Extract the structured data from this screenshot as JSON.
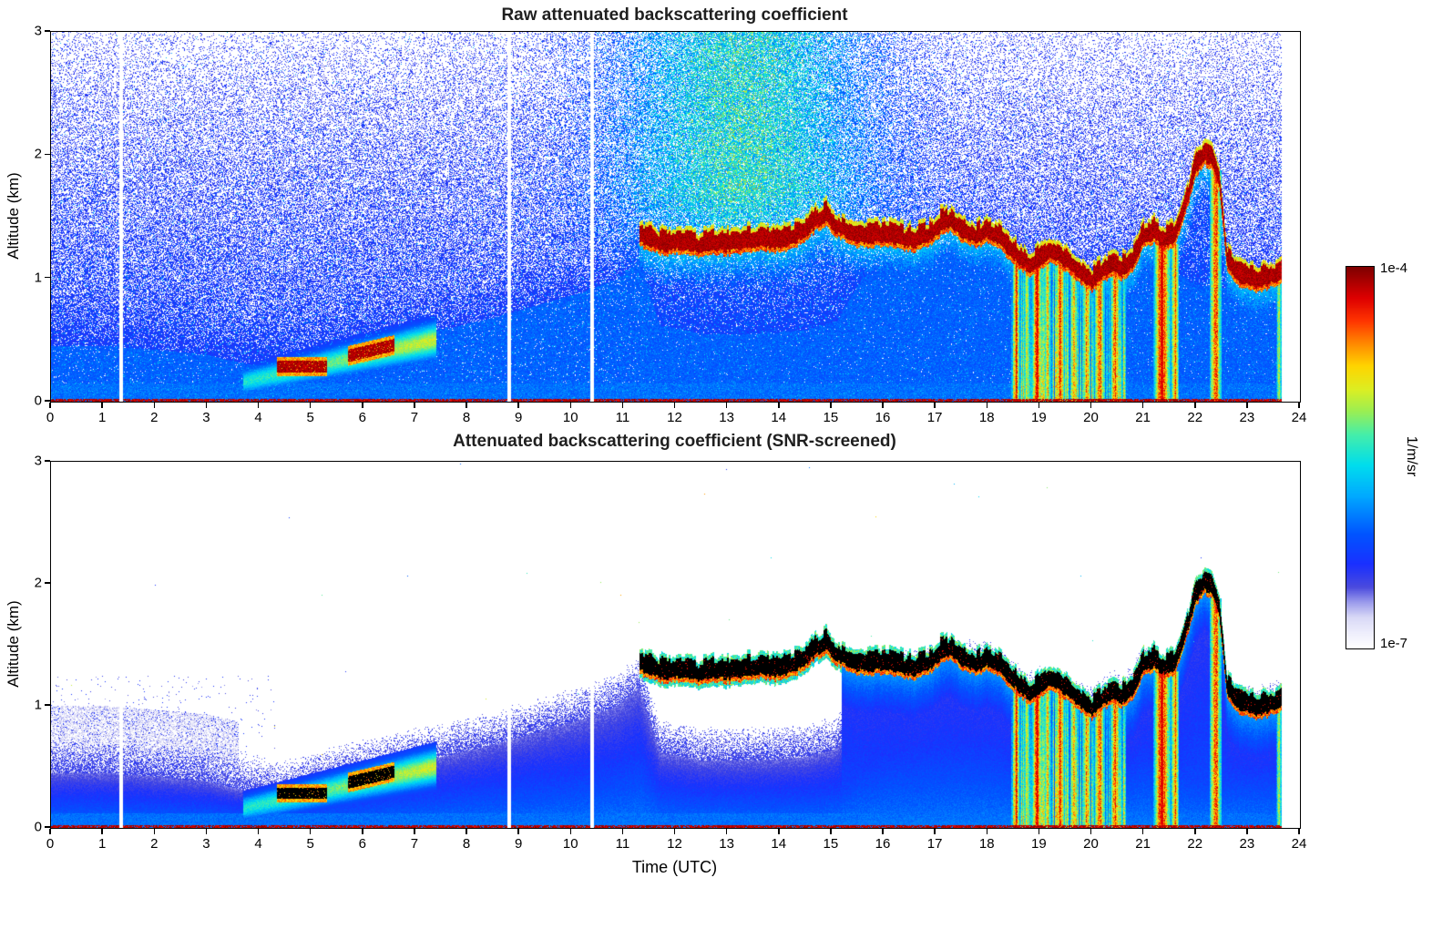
{
  "figure": {
    "background": "#ffffff"
  },
  "chart_data": [
    {
      "type": "heatmap",
      "title": "Raw attenuated backscattering coefficient",
      "ylabel": "Altitude (km)",
      "xlim": [
        0,
        24
      ],
      "ylim": [
        0,
        3
      ],
      "xticks": [
        0,
        1,
        2,
        3,
        4,
        5,
        6,
        7,
        8,
        9,
        10,
        11,
        12,
        13,
        14,
        15,
        16,
        17,
        18,
        19,
        20,
        21,
        22,
        23,
        24
      ],
      "yticks": [
        0,
        1,
        2,
        3
      ],
      "grid": false,
      "colorbar": {
        "max": "1e-4",
        "min": "1e-7",
        "units": "1/m/sr",
        "scale": "log"
      },
      "features": {
        "colormap_stops": [
          [
            0,
            "#ffffff"
          ],
          [
            0.04,
            "#eeeefc"
          ],
          [
            0.08,
            "#d9d9f6"
          ],
          [
            0.12,
            "#9b9bec"
          ],
          [
            0.16,
            "#4a4ade"
          ],
          [
            0.22,
            "#1a30ff"
          ],
          [
            0.3,
            "#0055ff"
          ],
          [
            0.4,
            "#00aaff"
          ],
          [
            0.48,
            "#00ddee"
          ],
          [
            0.56,
            "#44eeaa"
          ],
          [
            0.62,
            "#99ee55"
          ],
          [
            0.68,
            "#ddee22"
          ],
          [
            0.74,
            "#ffd500"
          ],
          [
            0.8,
            "#ff8800"
          ],
          [
            0.86,
            "#ff3300"
          ],
          [
            0.92,
            "#dd0000"
          ],
          [
            1,
            "#7f0000"
          ]
        ],
        "data_gaps_utc": [
          1.35,
          8.8,
          10.4
        ],
        "data_end_utc": 23.65,
        "day_noise": {
          "t_center": 13.3,
          "t_sigma": 2.4,
          "alt_min_km": 0.8
        },
        "bl_top_series": {
          "t": [
            0,
            1,
            2,
            3,
            3.8,
            4.5,
            5.5,
            6.5,
            7.5,
            8.5,
            9.5,
            10.3,
            10.9,
            11.3,
            11.7,
            12.5,
            13.5,
            14.5,
            15.1,
            15.6,
            16.2,
            17,
            18,
            18.5,
            19,
            20,
            21,
            22,
            23,
            24
          ],
          "alt_km": [
            0.45,
            0.45,
            0.42,
            0.38,
            0.3,
            0.28,
            0.4,
            0.5,
            0.58,
            0.68,
            0.8,
            0.9,
            1,
            1.15,
            0.62,
            0.55,
            0.55,
            0.58,
            0.65,
            1,
            1.15,
            1.25,
            1.28,
            1.1,
            1.05,
            0.9,
            1.2,
            0.95,
            0.9,
            0.95
          ]
        },
        "cloud_base_series": {
          "t": [
            11.3,
            11.5,
            11.8,
            12.1,
            12.4,
            12.7,
            13,
            13.3,
            13.6,
            13.9,
            14.2,
            14.5,
            14.7,
            14.9,
            15.1,
            15.4,
            15.7,
            16,
            16.3,
            16.6,
            16.9,
            17.1,
            17.3,
            17.5,
            17.8,
            18,
            18.2,
            18.4,
            18.6,
            18.8,
            19,
            19.2,
            19.4,
            19.6,
            19.8,
            20,
            20.2,
            20.4,
            20.6,
            20.8,
            21,
            21.2,
            21.4,
            21.6,
            21.8,
            22,
            22.15,
            22.3,
            22.45,
            22.6,
            22.8,
            23,
            23.2,
            23.4,
            23.65
          ],
          "alt_km": [
            1.3,
            1.26,
            1.22,
            1.24,
            1.21,
            1.23,
            1.22,
            1.24,
            1.26,
            1.24,
            1.27,
            1.33,
            1.42,
            1.45,
            1.37,
            1.3,
            1.28,
            1.3,
            1.27,
            1.25,
            1.3,
            1.38,
            1.42,
            1.33,
            1.28,
            1.33,
            1.28,
            1.2,
            1.12,
            1.05,
            1.1,
            1.18,
            1.12,
            1.05,
            0.98,
            0.92,
            1,
            1.05,
            1.02,
            1.1,
            1.28,
            1.32,
            1.25,
            1.3,
            1.55,
            1.85,
            1.95,
            1.92,
            1.75,
            1.1,
            0.98,
            0.95,
            0.92,
            0.95,
            1
          ]
        },
        "aerosol_plume": {
          "t_start": 3.7,
          "t_end": 7.4,
          "alt_start": 0.16,
          "alt_end": 0.5
        },
        "fog_patches": [
          {
            "t_start": 4.35,
            "t_end": 5.3,
            "alt_bottom": 0.24,
            "alt_top": 0.33,
            "rise": 0
          },
          {
            "t_start": 5.7,
            "t_end": 6.6,
            "alt_bottom": 0.32,
            "alt_top": 0.42,
            "rise": 0.09
          }
        ],
        "precip_band": {
          "t_start": 18.45,
          "t_end": 20.65
        },
        "precip_events": [
          {
            "t": 18.55,
            "w": 0.07,
            "ztop": 1.12,
            "i": 0.9
          },
          {
            "t": 18.75,
            "w": 0.06,
            "ztop": 1.05,
            "i": 0.75
          },
          {
            "t": 18.95,
            "w": 0.09,
            "ztop": 1.1,
            "i": 0.95
          },
          {
            "t": 19.15,
            "w": 0.07,
            "ztop": 1.15,
            "i": 0.8
          },
          {
            "t": 19.4,
            "w": 0.09,
            "ztop": 1.18,
            "i": 0.9
          },
          {
            "t": 19.65,
            "w": 0.07,
            "ztop": 1.05,
            "i": 0.8
          },
          {
            "t": 19.9,
            "w": 0.08,
            "ztop": 0.98,
            "i": 0.85
          },
          {
            "t": 20.15,
            "w": 0.1,
            "ztop": 1,
            "i": 0.9
          },
          {
            "t": 20.45,
            "w": 0.1,
            "ztop": 1.05,
            "i": 0.85
          },
          {
            "t": 21.35,
            "w": 0.16,
            "ztop": 1.3,
            "i": 0.98
          },
          {
            "t": 21.6,
            "w": 0.08,
            "ztop": 1.28,
            "i": 0.85
          },
          {
            "t": 22.38,
            "w": 0.12,
            "ztop": 1.88,
            "i": 0.88
          },
          {
            "t": 23.6,
            "w": 0.06,
            "ztop": 1,
            "i": 0.7
          }
        ]
      }
    },
    {
      "type": "heatmap",
      "title": "Attenuated backscattering coefficient (SNR-screened)",
      "xlabel": "Time (UTC)",
      "ylabel": "Altitude (km)",
      "xlim": [
        0,
        24
      ],
      "ylim": [
        0,
        3
      ],
      "xticks": [
        0,
        1,
        2,
        3,
        4,
        5,
        6,
        7,
        8,
        9,
        10,
        11,
        12,
        13,
        14,
        15,
        16,
        17,
        18,
        19,
        20,
        21,
        22,
        23,
        24
      ],
      "yticks": [
        0,
        1,
        2,
        3
      ],
      "grid": false,
      "screened": true
    }
  ]
}
